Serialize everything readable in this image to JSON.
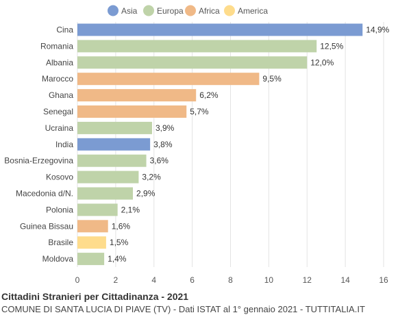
{
  "chart_data": {
    "type": "bar",
    "orientation": "horizontal",
    "title": "Cittadini Stranieri per Cittadinanza - 2021",
    "subtitle": "COMUNE DI SANTA LUCIA DI PIAVE (TV) - Dati ISTAT al 1° gennaio 2021 - TUTTITALIA.IT",
    "xlim": [
      0,
      16
    ],
    "xticks": [
      0,
      2,
      4,
      6,
      8,
      10,
      12,
      14,
      16
    ],
    "grid": true,
    "legend_position": "top",
    "legend": [
      {
        "name": "Asia",
        "color": "#7b9bd2"
      },
      {
        "name": "Europa",
        "color": "#bfd3a9"
      },
      {
        "name": "Africa",
        "color": "#f0b987"
      },
      {
        "name": "America",
        "color": "#fedc8c"
      }
    ],
    "bars": [
      {
        "category": "Cina",
        "value": 14.9,
        "label": "14,9%",
        "group": "Asia"
      },
      {
        "category": "Romania",
        "value": 12.5,
        "label": "12,5%",
        "group": "Europa"
      },
      {
        "category": "Albania",
        "value": 12.0,
        "label": "12,0%",
        "group": "Europa"
      },
      {
        "category": "Marocco",
        "value": 9.5,
        "label": "9,5%",
        "group": "Africa"
      },
      {
        "category": "Ghana",
        "value": 6.2,
        "label": "6,2%",
        "group": "Africa"
      },
      {
        "category": "Senegal",
        "value": 5.7,
        "label": "5,7%",
        "group": "Africa"
      },
      {
        "category": "Ucraina",
        "value": 3.9,
        "label": "3,9%",
        "group": "Europa"
      },
      {
        "category": "India",
        "value": 3.8,
        "label": "3,8%",
        "group": "Asia"
      },
      {
        "category": "Bosnia-Erzegovina",
        "value": 3.6,
        "label": "3,6%",
        "group": "Europa"
      },
      {
        "category": "Kosovo",
        "value": 3.2,
        "label": "3,2%",
        "group": "Europa"
      },
      {
        "category": "Macedonia d/N.",
        "value": 2.9,
        "label": "2,9%",
        "group": "Europa"
      },
      {
        "category": "Polonia",
        "value": 2.1,
        "label": "2,1%",
        "group": "Europa"
      },
      {
        "category": "Guinea Bissau",
        "value": 1.6,
        "label": "1,6%",
        "group": "Africa"
      },
      {
        "category": "Brasile",
        "value": 1.5,
        "label": "1,5%",
        "group": "America"
      },
      {
        "category": "Moldova",
        "value": 1.4,
        "label": "1,4%",
        "group": "Europa"
      }
    ]
  }
}
